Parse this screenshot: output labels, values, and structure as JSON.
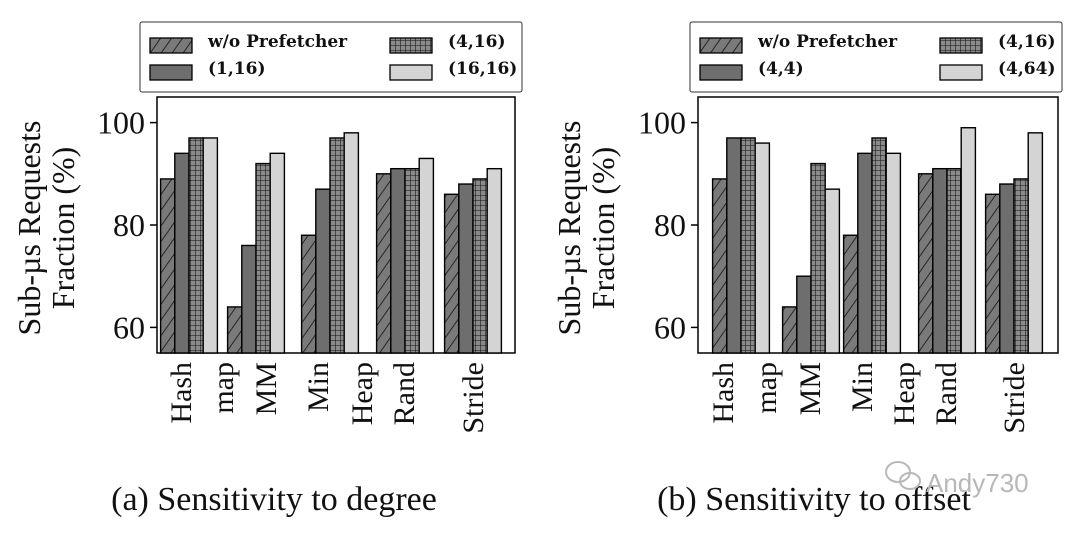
{
  "chart_data": [
    {
      "type": "bar",
      "title": "(a) Sensitivity to degree",
      "ylabel": [
        "Sub-µs Requests",
        "Fraction (%)"
      ],
      "xlabel": "",
      "ylim": [
        55,
        105
      ],
      "yticks": [
        60,
        80,
        100
      ],
      "categories": [
        [
          "Hash",
          "map"
        ],
        [
          "MM"
        ],
        [
          "Min",
          "Heap"
        ],
        [
          "Rand"
        ],
        [
          "Stride"
        ]
      ],
      "legend_position": "top",
      "series": [
        {
          "name": "w/o Prefetcher",
          "style": "hatch-diag",
          "values": [
            89,
            64,
            78,
            90,
            86
          ]
        },
        {
          "name": "(1,16)",
          "style": "dark",
          "values": [
            94,
            76,
            87,
            91,
            88
          ]
        },
        {
          "name": "(4,16)",
          "style": "grid",
          "values": [
            97,
            92,
            97,
            91,
            89
          ]
        },
        {
          "name": "(16,16)",
          "style": "light",
          "values": [
            97,
            94,
            98,
            93,
            91
          ]
        }
      ]
    },
    {
      "type": "bar",
      "title": "(b) Sensitivity to offset",
      "ylabel": [
        "Sub-µs Requests",
        "Fraction (%)"
      ],
      "xlabel": "",
      "ylim": [
        55,
        105
      ],
      "yticks": [
        60,
        80,
        100
      ],
      "categories": [
        [
          "Hash",
          "map"
        ],
        [
          "MM"
        ],
        [
          "Min",
          "Heap"
        ],
        [
          "Rand"
        ],
        [
          "Stride"
        ]
      ],
      "legend_position": "top",
      "series": [
        {
          "name": "w/o Prefetcher",
          "style": "hatch-diag",
          "values": [
            89,
            64,
            78,
            90,
            86
          ]
        },
        {
          "name": "(4,4)",
          "style": "dark",
          "values": [
            97,
            70,
            94,
            91,
            88
          ]
        },
        {
          "name": "(4,16)",
          "style": "grid",
          "values": [
            97,
            92,
            97,
            91,
            89
          ]
        },
        {
          "name": "(4,64)",
          "style": "light",
          "values": [
            96,
            87,
            94,
            99,
            98
          ]
        }
      ]
    }
  ],
  "watermark": "Andy730",
  "colors": {
    "dark": "#6e6e6e",
    "light": "#d4d4d4",
    "hatch_bg": "#7a7a7a",
    "grid_bg": "#7c7c7c",
    "stroke": "#000000"
  }
}
